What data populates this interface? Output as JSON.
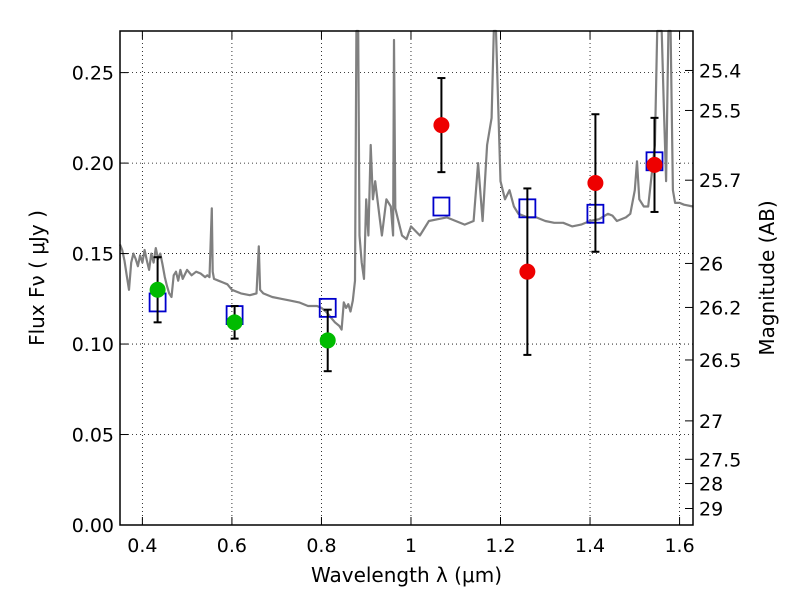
{
  "chart_data": {
    "type": "scatter",
    "title": "",
    "xlabel": "Wavelength λ (μm)",
    "ylabel": "Flux Fν ( μJy )",
    "ylabel_right": "Magnitude (AB)",
    "xlim": [
      0.35,
      1.63
    ],
    "ylim": [
      0.0,
      0.273
    ],
    "grid": true,
    "x_ticks": [
      {
        "value": 0.4,
        "label": "0.4"
      },
      {
        "value": 0.6,
        "label": "0.6"
      },
      {
        "value": 0.8,
        "label": "0.8"
      },
      {
        "value": 1.0,
        "label": "1"
      },
      {
        "value": 1.2,
        "label": "1.2"
      },
      {
        "value": 1.4,
        "label": "1.4"
      },
      {
        "value": 1.6,
        "label": "1.6"
      }
    ],
    "y_ticks": [
      {
        "value": 0.0,
        "label": "0.00"
      },
      {
        "value": 0.05,
        "label": "0.05"
      },
      {
        "value": 0.1,
        "label": "0.10"
      },
      {
        "value": 0.15,
        "label": "0.15"
      },
      {
        "value": 0.2,
        "label": "0.20"
      },
      {
        "value": 0.25,
        "label": "0.25"
      }
    ],
    "y_right_ticks": [
      {
        "value": 25.4,
        "label": "25.4"
      },
      {
        "value": 25.5,
        "label": "25.5"
      },
      {
        "value": 25.7,
        "label": "25.7"
      },
      {
        "value": 26.0,
        "label": "26"
      },
      {
        "value": 26.2,
        "label": "26.2"
      },
      {
        "value": 26.5,
        "label": "26.5"
      },
      {
        "value": 27.0,
        "label": "27"
      },
      {
        "value": 27.5,
        "label": "27.5"
      },
      {
        "value": 28.0,
        "label": "28"
      },
      {
        "value": 29.0,
        "label": "29"
      }
    ],
    "model_spectrum": {
      "color": "#808080",
      "points": [
        [
          0.35,
          0.155
        ],
        [
          0.355,
          0.152
        ],
        [
          0.36,
          0.146
        ],
        [
          0.365,
          0.138
        ],
        [
          0.37,
          0.13
        ],
        [
          0.375,
          0.145
        ],
        [
          0.38,
          0.15
        ],
        [
          0.385,
          0.147
        ],
        [
          0.39,
          0.143
        ],
        [
          0.395,
          0.149
        ],
        [
          0.4,
          0.145
        ],
        [
          0.405,
          0.152
        ],
        [
          0.41,
          0.146
        ],
        [
          0.415,
          0.141
        ],
        [
          0.42,
          0.15
        ],
        [
          0.425,
          0.145
        ],
        [
          0.43,
          0.153
        ],
        [
          0.435,
          0.147
        ],
        [
          0.44,
          0.15
        ],
        [
          0.445,
          0.144
        ],
        [
          0.45,
          0.137
        ],
        [
          0.455,
          0.132
        ],
        [
          0.46,
          0.128
        ],
        [
          0.465,
          0.126
        ],
        [
          0.47,
          0.138
        ],
        [
          0.475,
          0.14
        ],
        [
          0.48,
          0.135
        ],
        [
          0.485,
          0.141
        ],
        [
          0.49,
          0.136
        ],
        [
          0.5,
          0.141
        ],
        [
          0.51,
          0.138
        ],
        [
          0.52,
          0.14
        ],
        [
          0.53,
          0.139
        ],
        [
          0.54,
          0.137
        ],
        [
          0.545,
          0.138
        ],
        [
          0.55,
          0.137
        ],
        [
          0.555,
          0.175
        ],
        [
          0.557,
          0.14
        ],
        [
          0.56,
          0.136
        ],
        [
          0.57,
          0.135
        ],
        [
          0.58,
          0.134
        ],
        [
          0.59,
          0.133
        ],
        [
          0.6,
          0.13
        ],
        [
          0.62,
          0.128
        ],
        [
          0.64,
          0.127
        ],
        [
          0.655,
          0.128
        ],
        [
          0.66,
          0.154
        ],
        [
          0.663,
          0.13
        ],
        [
          0.67,
          0.128
        ],
        [
          0.69,
          0.126
        ],
        [
          0.71,
          0.125
        ],
        [
          0.73,
          0.124
        ],
        [
          0.75,
          0.123
        ],
        [
          0.77,
          0.121
        ],
        [
          0.79,
          0.121
        ],
        [
          0.8,
          0.12
        ],
        [
          0.81,
          0.118
        ],
        [
          0.82,
          0.115
        ],
        [
          0.83,
          0.112
        ],
        [
          0.84,
          0.11
        ],
        [
          0.845,
          0.108
        ],
        [
          0.85,
          0.123
        ],
        [
          0.855,
          0.12
        ],
        [
          0.86,
          0.122
        ],
        [
          0.865,
          0.118
        ],
        [
          0.87,
          0.124
        ],
        [
          0.875,
          0.135
        ],
        [
          0.878,
          0.273
        ],
        [
          0.882,
          0.273
        ],
        [
          0.885,
          0.16
        ],
        [
          0.89,
          0.145
        ],
        [
          0.895,
          0.136
        ],
        [
          0.9,
          0.18
        ],
        [
          0.905,
          0.16
        ],
        [
          0.91,
          0.21
        ],
        [
          0.915,
          0.18
        ],
        [
          0.92,
          0.19
        ],
        [
          0.93,
          0.17
        ],
        [
          0.935,
          0.16
        ],
        [
          0.945,
          0.18
        ],
        [
          0.955,
          0.176
        ],
        [
          0.96,
          0.16
        ],
        [
          0.962,
          0.268
        ],
        [
          0.965,
          0.175
        ],
        [
          0.97,
          0.17
        ],
        [
          0.98,
          0.16
        ],
        [
          0.99,
          0.158
        ],
        [
          1.0,
          0.165
        ],
        [
          1.02,
          0.16
        ],
        [
          1.04,
          0.168
        ],
        [
          1.06,
          0.169
        ],
        [
          1.08,
          0.17
        ],
        [
          1.1,
          0.168
        ],
        [
          1.12,
          0.166
        ],
        [
          1.14,
          0.168
        ],
        [
          1.15,
          0.2
        ],
        [
          1.16,
          0.168
        ],
        [
          1.17,
          0.21
        ],
        [
          1.18,
          0.225
        ],
        [
          1.185,
          0.273
        ],
        [
          1.19,
          0.273
        ],
        [
          1.195,
          0.23
        ],
        [
          1.2,
          0.19
        ],
        [
          1.21,
          0.18
        ],
        [
          1.22,
          0.185
        ],
        [
          1.23,
          0.176
        ],
        [
          1.24,
          0.172
        ],
        [
          1.26,
          0.17
        ],
        [
          1.28,
          0.17
        ],
        [
          1.3,
          0.168
        ],
        [
          1.32,
          0.167
        ],
        [
          1.34,
          0.167
        ],
        [
          1.36,
          0.165
        ],
        [
          1.38,
          0.166
        ],
        [
          1.4,
          0.168
        ],
        [
          1.42,
          0.169
        ],
        [
          1.44,
          0.172
        ],
        [
          1.45,
          0.171
        ],
        [
          1.46,
          0.168
        ],
        [
          1.48,
          0.17
        ],
        [
          1.49,
          0.172
        ],
        [
          1.5,
          0.185
        ],
        [
          1.505,
          0.201
        ],
        [
          1.51,
          0.18
        ],
        [
          1.52,
          0.176
        ],
        [
          1.53,
          0.176
        ],
        [
          1.545,
          0.21
        ],
        [
          1.55,
          0.273
        ],
        [
          1.56,
          0.273
        ],
        [
          1.565,
          0.23
        ],
        [
          1.57,
          0.19
        ],
        [
          1.575,
          0.273
        ],
        [
          1.58,
          0.273
        ],
        [
          1.585,
          0.185
        ],
        [
          1.59,
          0.178
        ],
        [
          1.6,
          0.178
        ],
        [
          1.61,
          0.177
        ],
        [
          1.63,
          0.176
        ]
      ]
    },
    "series": [
      {
        "marker": "square",
        "color": "#0000cc",
        "points": [
          [
            0.434,
            0.123
          ],
          [
            0.606,
            0.116
          ],
          [
            0.814,
            0.12
          ],
          [
            1.068,
            0.176
          ],
          [
            1.26,
            0.175
          ],
          [
            1.412,
            0.172
          ],
          [
            1.544,
            0.201
          ]
        ]
      },
      {
        "marker": "circle",
        "color": "#00bb00",
        "points": [
          [
            0.434,
            0.13
          ],
          [
            0.606,
            0.112
          ],
          [
            0.814,
            0.102
          ]
        ],
        "errors": [
          0.018,
          0.009,
          0.017
        ]
      },
      {
        "marker": "circle",
        "color": "#ee0000",
        "points": [
          [
            1.068,
            0.221
          ],
          [
            1.26,
            0.14
          ],
          [
            1.412,
            0.189
          ],
          [
            1.544,
            0.199
          ]
        ],
        "errors": [
          0.026,
          0.046,
          0.038,
          0.026
        ]
      }
    ]
  }
}
